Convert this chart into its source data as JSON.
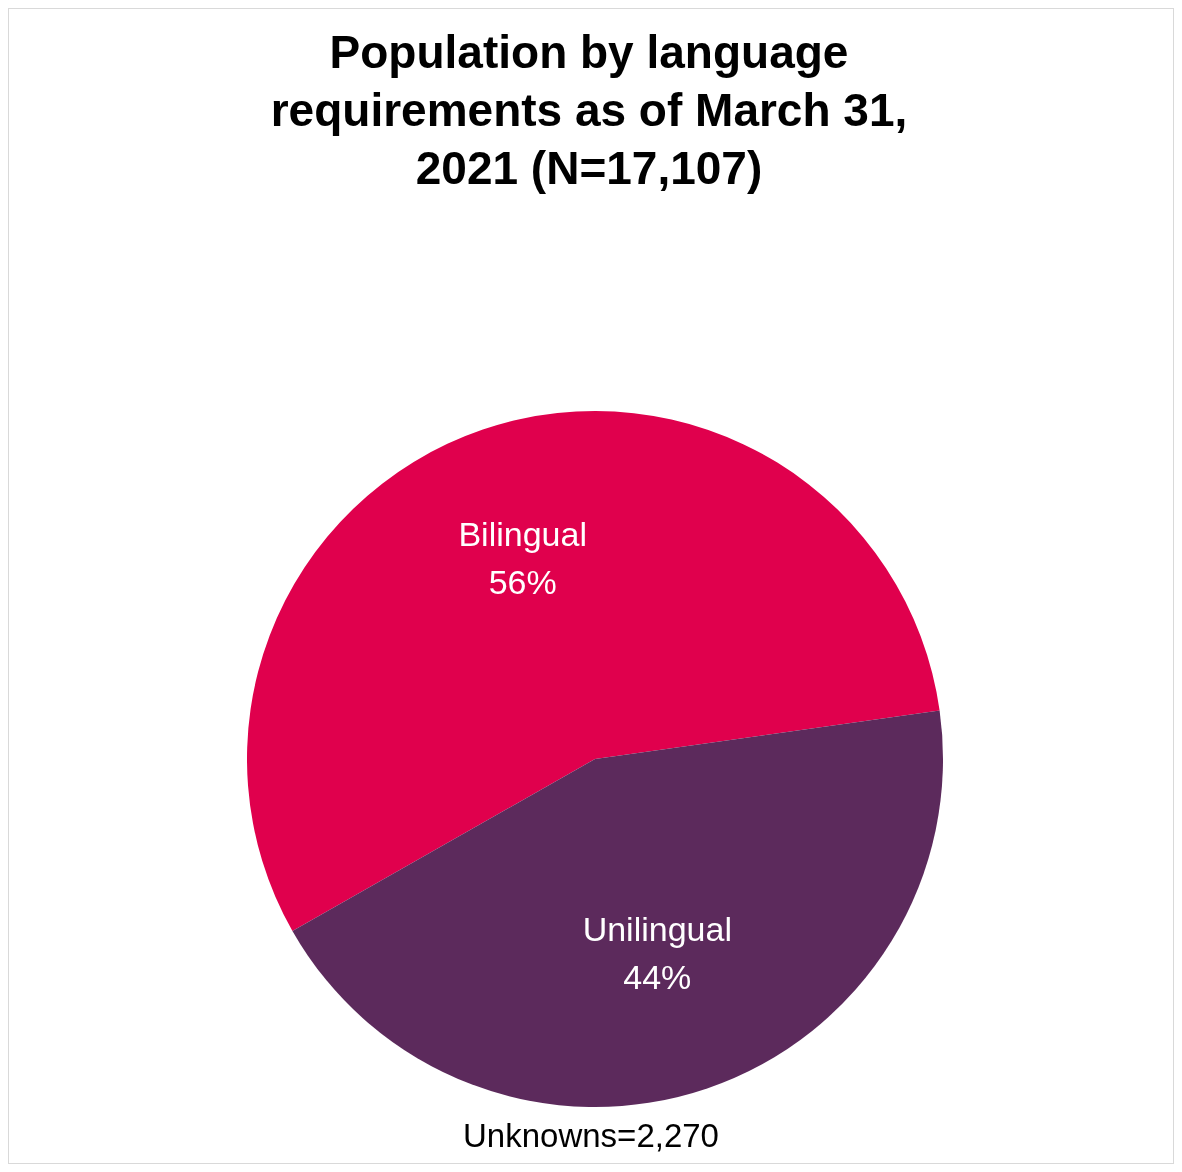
{
  "chart_data": {
    "type": "pie",
    "title": "Population by language requirements as of March 31, 2021 (N=17,107)",
    "categories": [
      "Bilingual",
      "Unilingual"
    ],
    "values": [
      56,
      44
    ],
    "colors": [
      "#e0004d",
      "#5c2a5c"
    ],
    "value_labels": [
      "56%",
      "44%"
    ],
    "annotations": [
      "Unknowns=2,270"
    ],
    "legend": false
  }
}
